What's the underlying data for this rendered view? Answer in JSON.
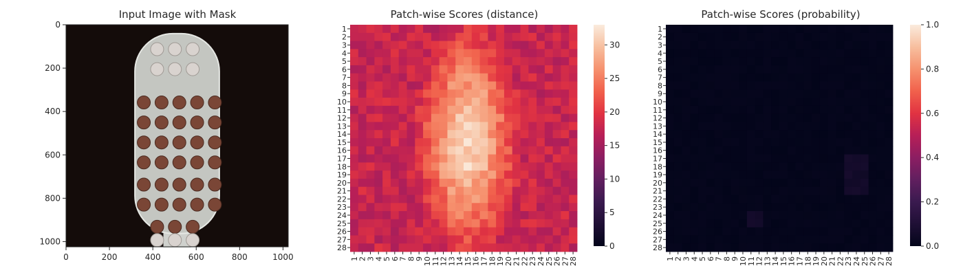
{
  "colors": {
    "photo_background": "#140c0a",
    "toothbrush_head": "#c4c6c1",
    "bristle_tufts_masked": "#7a4636",
    "bristle_tufts_light": "#d9d3cf",
    "colormap_low": "#03051a",
    "colormap_mid": "#e13342",
    "colormap_high": "#faebdd"
  },
  "chart_data": [
    {
      "type": "image",
      "title": "Input Image with Mask",
      "description_icon": "toothbrush-head-photo",
      "xlim": [
        0,
        1024
      ],
      "ylim": [
        1024,
        0
      ],
      "xticks": [
        0,
        200,
        400,
        600,
        800,
        1000
      ],
      "yticks": [
        0,
        200,
        400,
        600,
        800,
        1000
      ],
      "tufts_rows": [
        [
          0.41,
          0.49,
          0.57
        ],
        [
          0.41,
          0.49,
          0.57
        ],
        [
          0.35,
          0.43,
          0.51,
          0.59,
          0.67
        ],
        [
          0.35,
          0.43,
          0.51,
          0.59,
          0.67
        ],
        [
          0.35,
          0.43,
          0.51,
          0.59,
          0.67
        ],
        [
          0.35,
          0.43,
          0.51,
          0.59,
          0.67
        ],
        [
          0.35,
          0.43,
          0.51,
          0.59,
          0.67
        ],
        [
          0.35,
          0.43,
          0.51,
          0.59,
          0.67
        ],
        [
          0.41,
          0.49,
          0.57
        ],
        [
          0.41,
          0.49,
          0.57
        ]
      ],
      "tuft_row_y": [
        0.11,
        0.2,
        0.35,
        0.44,
        0.53,
        0.62,
        0.72,
        0.81,
        0.91,
        0.97
      ]
    },
    {
      "type": "heatmap",
      "title": "Patch-wise Scores (distance)",
      "rows": 28,
      "cols": 28,
      "tick_labels": [
        "1",
        "2",
        "3",
        "4",
        "5",
        "6",
        "7",
        "8",
        "9",
        "10",
        "11",
        "12",
        "13",
        "14",
        "15",
        "16",
        "17",
        "18",
        "19",
        "20",
        "21",
        "22",
        "23",
        "24",
        "25",
        "26",
        "27",
        "28"
      ],
      "value_range": [
        0,
        33
      ],
      "colorbar_ticks": [
        0,
        5,
        10,
        15,
        20,
        25,
        30
      ],
      "colormap": "rocket",
      "pattern": "distance scores roughly 17-22 at the border and 27-33 in a central toothbrush-shaped region"
    },
    {
      "type": "heatmap",
      "title": "Patch-wise Scores (probability)",
      "rows": 28,
      "cols": 28,
      "tick_labels": [
        "1",
        "2",
        "3",
        "4",
        "5",
        "6",
        "7",
        "8",
        "9",
        "10",
        "11",
        "12",
        "13",
        "14",
        "15",
        "16",
        "17",
        "18",
        "19",
        "20",
        "21",
        "22",
        "23",
        "24",
        "25",
        "26",
        "27",
        "28"
      ],
      "value_range": [
        0,
        1
      ],
      "colorbar_ticks": [
        "0.0",
        "0.2",
        "0.4",
        "0.6",
        "0.8",
        "1.0"
      ],
      "colormap": "rocket",
      "pattern": "nearly all values near 0.0; faint values up to about 0.06 around rows 18-20 and 24-25"
    }
  ]
}
